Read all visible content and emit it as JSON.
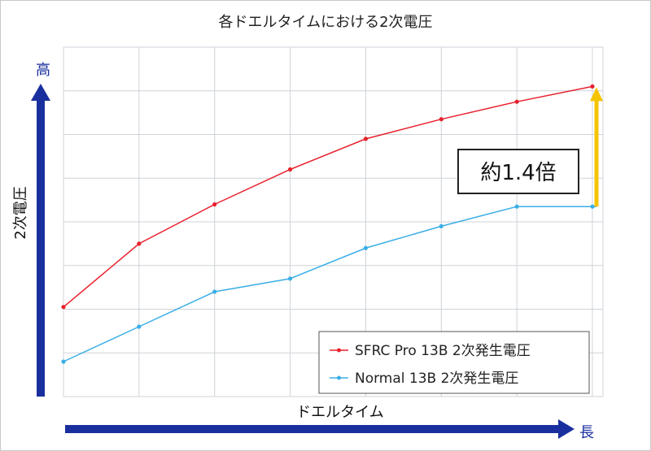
{
  "chart_data": {
    "type": "line",
    "title": "各ドエルタイムにおける2次電圧",
    "xlabel": "ドエルタイム",
    "ylabel": "2次電圧",
    "x_arrow_label": "長",
    "y_arrow_label": "高",
    "x": [
      1,
      2,
      3,
      4,
      5,
      6,
      7,
      8
    ],
    "xlim": [
      1,
      8.14
    ],
    "ylim": [
      0,
      8
    ],
    "grid": true,
    "legend_position": "bottom-right",
    "series": [
      {
        "name": "SFRC Pro 13B 2次発生電圧",
        "color": "#e8212d",
        "values": [
          2.05,
          3.5,
          4.4,
          5.2,
          5.9,
          6.35,
          6.75,
          7.1
        ]
      },
      {
        "name": "Normal 13B 2次発生電圧",
        "color": "#3aaee6",
        "values": [
          0.8,
          1.6,
          2.4,
          2.7,
          3.4,
          3.9,
          4.35,
          4.35
        ]
      }
    ],
    "annotation": {
      "text": "約1.4倍",
      "arrow_color": "#f5c400",
      "from_value": 4.35,
      "to_value": 7.1
    },
    "axis_arrow_color": "#1a2f9e"
  }
}
